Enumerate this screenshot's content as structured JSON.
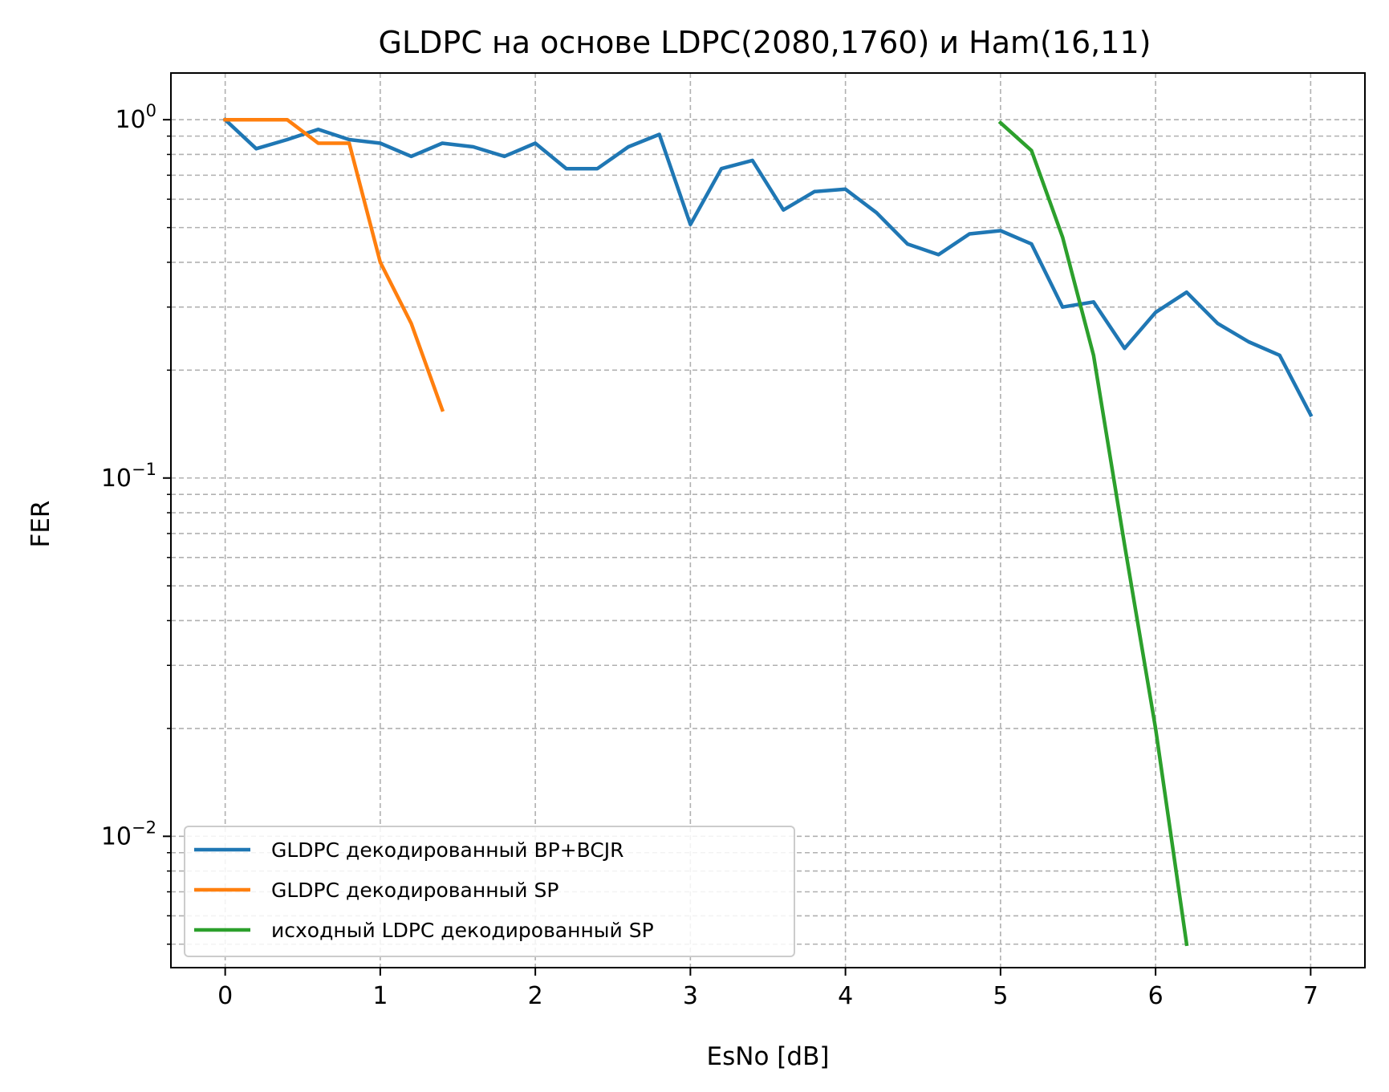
{
  "chart_data": {
    "type": "line",
    "title": "GLDPC на основе LDPC(2080,1760) и Ham(16,11)",
    "xlabel": "EsNo [dB]",
    "ylabel": "FER",
    "xlim": [
      -0.35,
      7.35
    ],
    "ylim": [
      0.0043,
      1.35
    ],
    "yscale": "log",
    "grid": true,
    "legend_position": "lower-left",
    "x_ticks": [
      0,
      1,
      2,
      3,
      4,
      5,
      6,
      7
    ],
    "y_ticks": [
      {
        "value": 1,
        "base": "10",
        "exp": "0"
      },
      {
        "value": 0.1,
        "base": "10",
        "exp": "−1"
      },
      {
        "value": 0.01,
        "base": "10",
        "exp": "−2"
      }
    ],
    "series": [
      {
        "name": "GLDPC декодированный BP+BCJR",
        "color": "#1f77b4",
        "x": [
          0,
          0.2,
          0.4,
          0.6,
          0.8,
          1.0,
          1.2,
          1.4,
          1.6,
          1.8,
          2.0,
          2.2,
          2.4,
          2.6,
          2.8,
          3.0,
          3.2,
          3.4,
          3.6,
          3.8,
          4.0,
          4.2,
          4.4,
          4.6,
          4.8,
          5.0,
          5.2,
          5.4,
          5.6,
          5.8,
          6.0,
          6.2,
          6.4,
          6.6,
          6.8,
          7.0
        ],
        "y": [
          1.0,
          0.83,
          0.88,
          0.94,
          0.88,
          0.86,
          0.79,
          0.86,
          0.84,
          0.79,
          0.86,
          0.73,
          0.73,
          0.84,
          0.91,
          0.51,
          0.73,
          0.77,
          0.56,
          0.63,
          0.64,
          0.55,
          0.45,
          0.42,
          0.48,
          0.49,
          0.45,
          0.3,
          0.31,
          0.23,
          0.29,
          0.33,
          0.27,
          0.24,
          0.22,
          0.15
        ]
      },
      {
        "name": "GLDPC декодированный SP",
        "color": "#ff7f0e",
        "x": [
          0,
          0.2,
          0.4,
          0.6,
          0.8,
          1.0,
          1.2,
          1.4
        ],
        "y": [
          1.0,
          1.0,
          1.0,
          0.86,
          0.86,
          0.4,
          0.27,
          0.155
        ]
      },
      {
        "name": "исходный LDPC декодированный SP",
        "color": "#2ca02c",
        "x": [
          5.0,
          5.2,
          5.4,
          5.6,
          5.8,
          6.0,
          6.2
        ],
        "y": [
          0.98,
          0.82,
          0.47,
          0.22,
          0.065,
          0.02,
          0.005
        ]
      }
    ]
  }
}
